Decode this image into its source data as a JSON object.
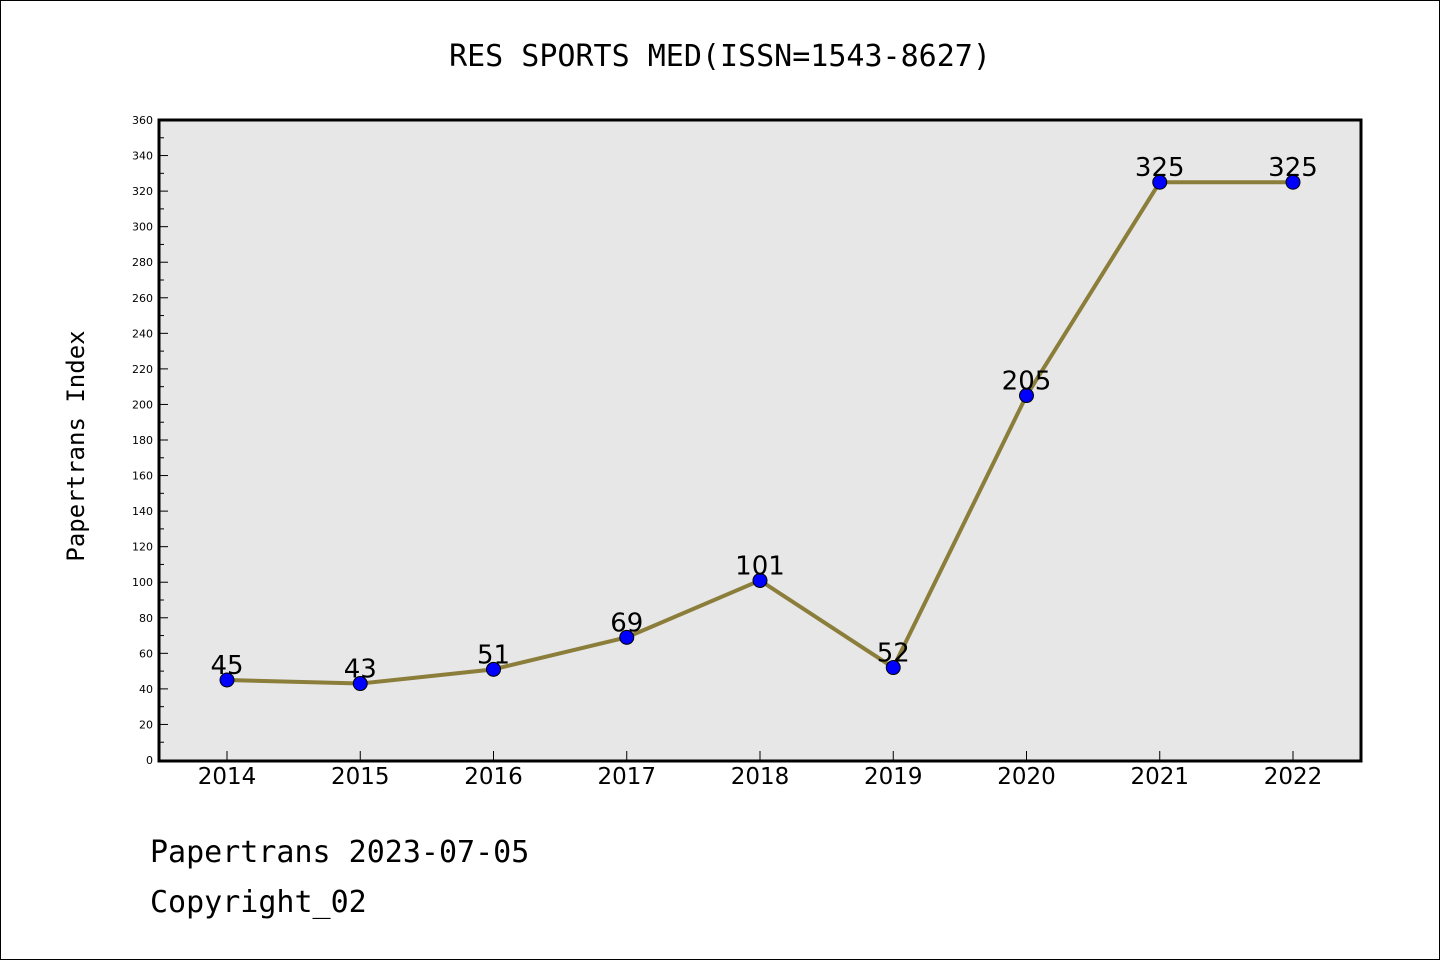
{
  "chart_data": {
    "type": "line",
    "title": "RES SPORTS MED(ISSN=1543-8627)",
    "xlabel": "",
    "ylabel": "Papertrans Index",
    "categories": [
      "2014",
      "2015",
      "2016",
      "2017",
      "2018",
      "2019",
      "2020",
      "2021",
      "2022"
    ],
    "series": [
      {
        "values": [
          45,
          43,
          51,
          69,
          101,
          52,
          205,
          325,
          325
        ]
      }
    ],
    "data_labels": [
      "45",
      "43",
      "51",
      "69",
      "101",
      "52",
      "205",
      "325",
      "325"
    ],
    "ylim": [
      0,
      360
    ],
    "yticks": [
      0,
      20,
      40,
      60,
      80,
      100,
      120,
      140,
      160,
      180,
      200,
      220,
      240,
      260,
      280,
      300,
      320,
      340,
      360
    ],
    "grid": false,
    "colors": {
      "line": "#8b7d3a",
      "marker": "#0000ff",
      "plot_background": "#e7e7e7"
    }
  },
  "footer": {
    "line1": "Papertrans 2023-07-05",
    "line2": "Copyright_02"
  }
}
